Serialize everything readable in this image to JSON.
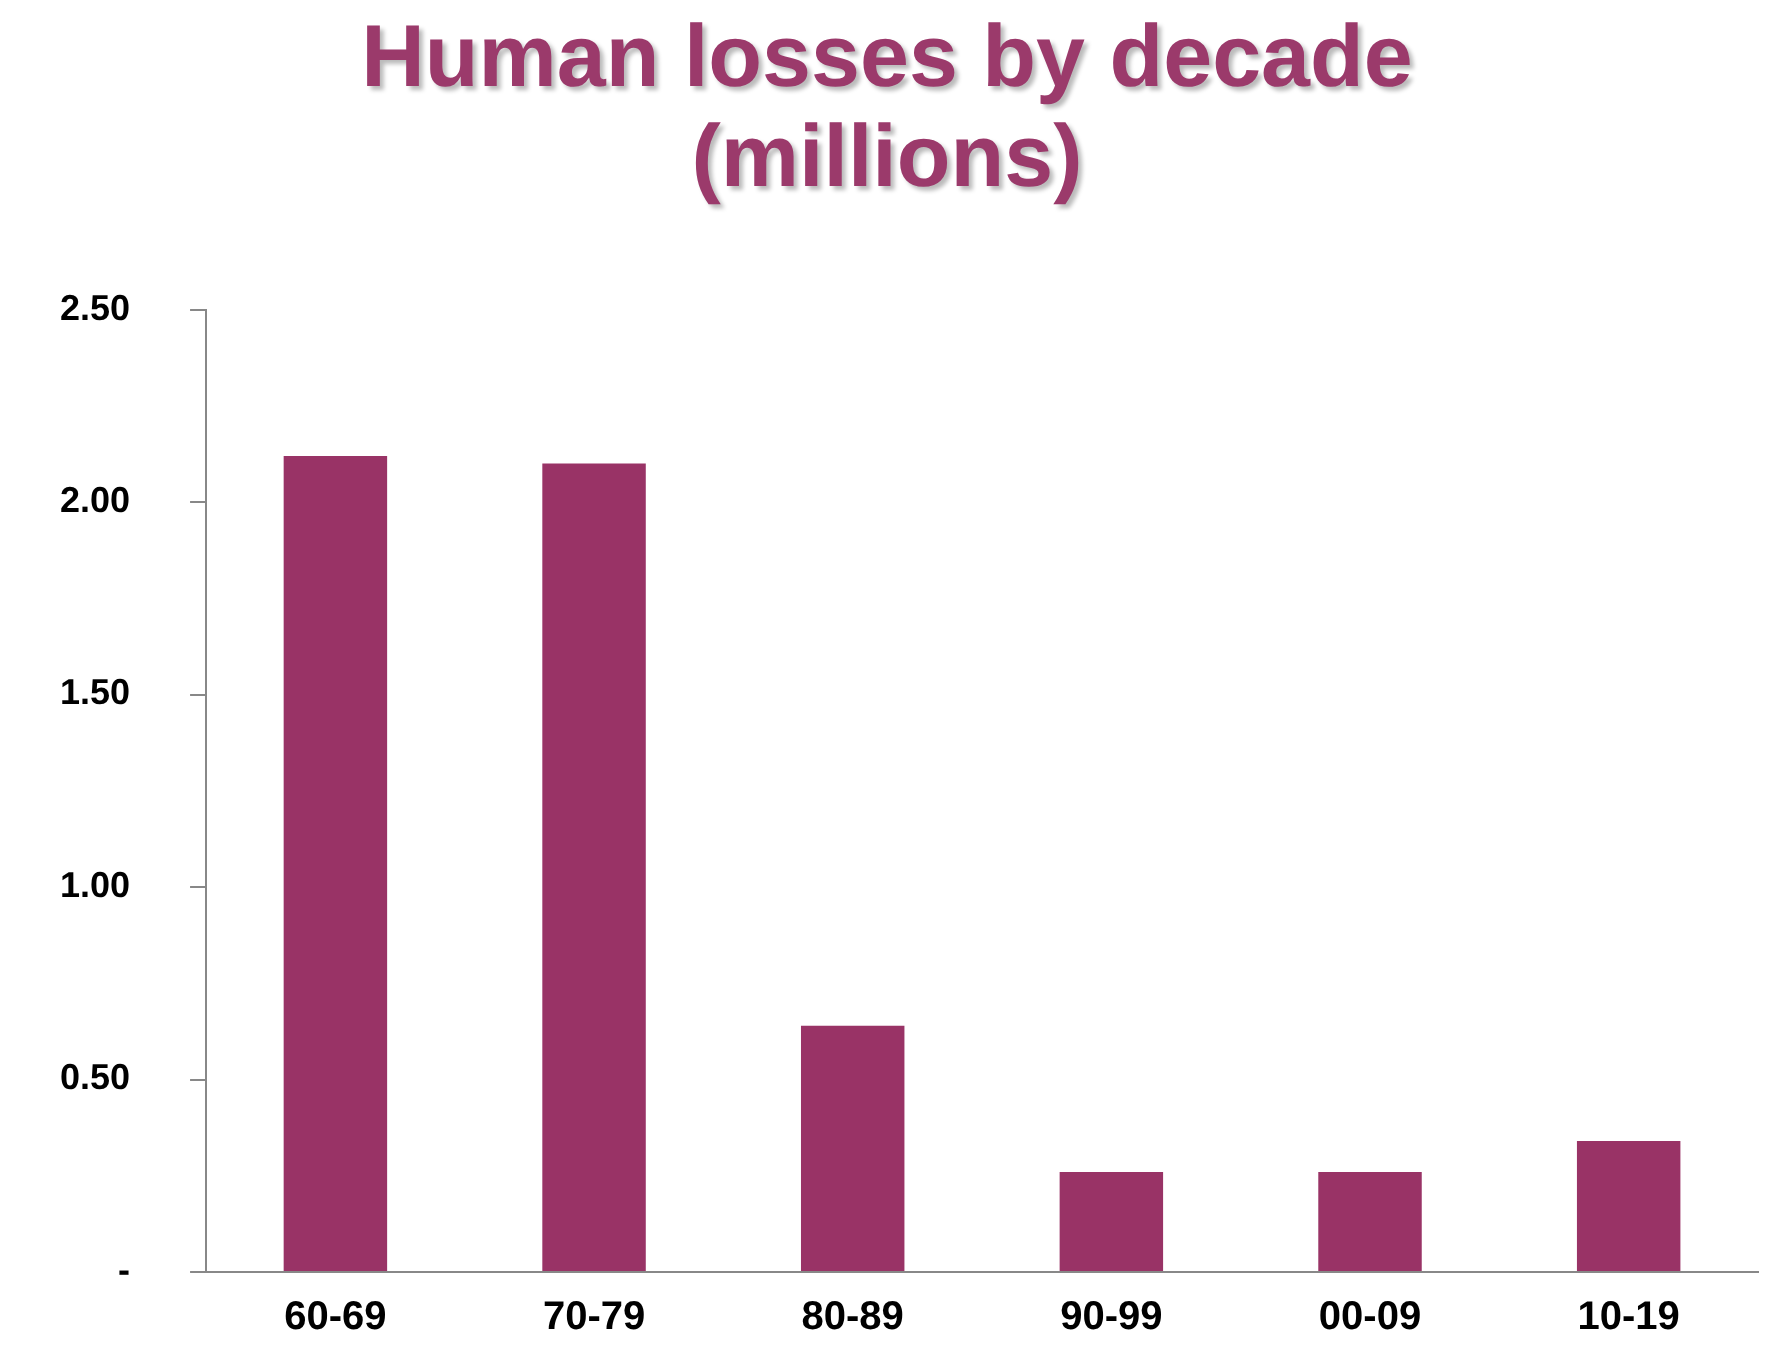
{
  "chart_data": {
    "type": "bar",
    "title": "Human losses by decade (millions)",
    "categories": [
      "60-69",
      "70-79",
      "80-89",
      "90-99",
      "00-09",
      "10-19"
    ],
    "values": [
      2.12,
      2.1,
      0.64,
      0.26,
      0.26,
      0.34
    ],
    "color": "#993366",
    "ylim": [
      0,
      2.5
    ],
    "yticks": [
      {
        "value": 0,
        "label": "-"
      },
      {
        "value": 0.5,
        "label": "0.50"
      },
      {
        "value": 1,
        "label": "1.00"
      },
      {
        "value": 1.5,
        "label": "1.50"
      },
      {
        "value": 2,
        "label": "2.00"
      },
      {
        "value": 2.5,
        "label": "2.50"
      }
    ],
    "grid": false,
    "legend": false
  }
}
